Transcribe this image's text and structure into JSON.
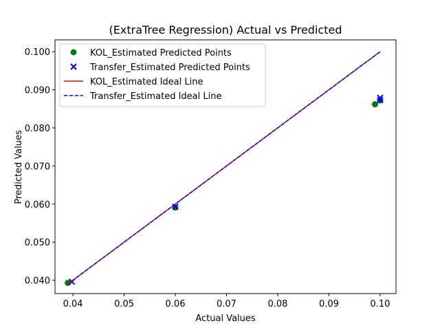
{
  "chart_data": {
    "type": "scatter",
    "title": "(ExtraTree Regression) Actual vs Predicted",
    "xlabel": "Actual Values",
    "ylabel": "Predicted Values",
    "xlim": [
      0.0365,
      0.1031
    ],
    "ylim": [
      0.0365,
      0.1031
    ],
    "xticks": [
      "0.04",
      "0.05",
      "0.06",
      "0.07",
      "0.08",
      "0.09",
      "0.10"
    ],
    "yticks": [
      "0.040",
      "0.050",
      "0.060",
      "0.070",
      "0.080",
      "0.090",
      "0.100"
    ],
    "grid": false,
    "legend_position": "top-left",
    "series": [
      {
        "name": "KOL_Estimated Predicted Points",
        "kind": "points",
        "marker": "circle",
        "color": "#008000",
        "points": [
          [
            0.039,
            0.0393
          ],
          [
            0.06,
            0.0591
          ],
          [
            0.099,
            0.0862
          ],
          [
            0.1,
            0.0872
          ]
        ]
      },
      {
        "name": "Transfer_Estimated Predicted Points",
        "kind": "points",
        "marker": "x",
        "color": "#0000ff",
        "points": [
          [
            0.0398,
            0.0396
          ],
          [
            0.06,
            0.0593
          ],
          [
            0.1,
            0.0879
          ],
          [
            0.1,
            0.0873
          ]
        ]
      },
      {
        "name": "KOL_Estimated Ideal Line",
        "kind": "line",
        "style": "solid",
        "color": "#ff0000",
        "points": [
          [
            0.039,
            0.039
          ],
          [
            0.1,
            0.1
          ]
        ]
      },
      {
        "name": "Transfer_Estimated Ideal Line",
        "kind": "line",
        "style": "dashed",
        "color": "#0000ff",
        "points": [
          [
            0.0398,
            0.0398
          ],
          [
            0.1,
            0.1
          ]
        ]
      }
    ]
  }
}
